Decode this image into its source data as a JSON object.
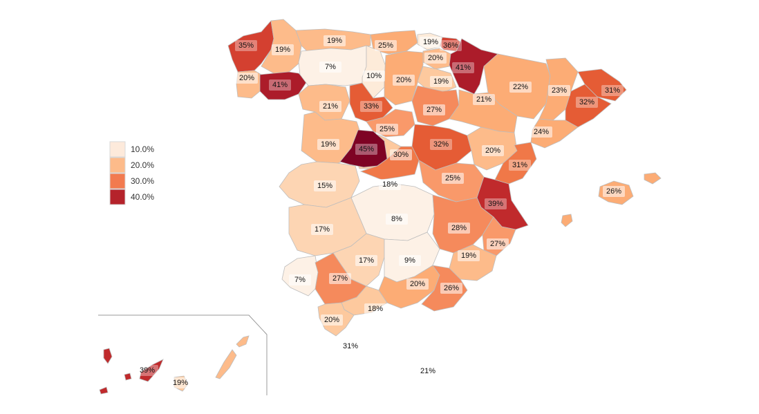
{
  "legend": {
    "items": [
      {
        "label": "10.0%",
        "color": "#fdeadb"
      },
      {
        "label": "20.0%",
        "color": "#fdbb8a"
      },
      {
        "label": "30.0%",
        "color": "#f27a4f"
      },
      {
        "label": "40.0%",
        "color": "#b5232b"
      }
    ]
  },
  "colors": {
    "c7": "#fdf1e6",
    "c10": "#fdebd9",
    "c15": "#fdd5b3",
    "c18": "#fdc99e",
    "c20": "#fdbb8a",
    "c22": "#fcac75",
    "c25": "#f9996a",
    "c27": "#f58a5c",
    "c30": "#f07848",
    "c33": "#e55c35",
    "c36": "#d44030",
    "c39": "#c02a2c",
    "c41": "#ac1c2a",
    "c45": "#7e0324"
  },
  "regions": [
    {
      "name": "A Coruna",
      "value": "35%"
    },
    {
      "name": "Lugo",
      "value": "19%"
    },
    {
      "name": "Asturias",
      "value": "19%"
    },
    {
      "name": "Cantabria",
      "value": "25%"
    },
    {
      "name": "Vizcaya",
      "value": "19%"
    },
    {
      "name": "Guipuzcoa",
      "value": "36%"
    },
    {
      "name": "Alava",
      "value": "20%"
    },
    {
      "name": "Navarra",
      "value": "41%"
    },
    {
      "name": "Leon",
      "value": "7%"
    },
    {
      "name": "Palencia",
      "value": "10%"
    },
    {
      "name": "Burgos",
      "value": "20%"
    },
    {
      "name": "La Rioja",
      "value": "19%"
    },
    {
      "name": "Pontevedra",
      "value": "20%"
    },
    {
      "name": "Ourense",
      "value": "41%"
    },
    {
      "name": "Huesca",
      "value": "22%"
    },
    {
      "name": "Girona",
      "value": "31%"
    },
    {
      "name": "Lleida",
      "value": "23%"
    },
    {
      "name": "Barcelona",
      "value": "32%"
    },
    {
      "name": "Zamora",
      "value": "21%"
    },
    {
      "name": "Valladolid",
      "value": "33%"
    },
    {
      "name": "Soria",
      "value": "27%"
    },
    {
      "name": "Zaragoza",
      "value": "21%"
    },
    {
      "name": "Segovia",
      "value": "25%"
    },
    {
      "name": "Tarragona",
      "value": "24%"
    },
    {
      "name": "Salamanca",
      "value": "19%"
    },
    {
      "name": "Madrid",
      "value": "45%"
    },
    {
      "name": "Guadalajara",
      "value": "32%"
    },
    {
      "name": "Teruel",
      "value": "20%"
    },
    {
      "name": "Castellon",
      "value": "31%"
    },
    {
      "name": "Toledo",
      "value": "30%"
    },
    {
      "name": "Caceres",
      "value": "15%"
    },
    {
      "name": "Avila",
      "value": "18%"
    },
    {
      "name": "Cuenca",
      "value": "25%"
    },
    {
      "name": "Valencia",
      "value": "39%"
    },
    {
      "name": "Mallorca",
      "value": "26%"
    },
    {
      "name": "Ciudad Real",
      "value": "8%"
    },
    {
      "name": "Badajoz",
      "value": "17%"
    },
    {
      "name": "Albacete",
      "value": "28%"
    },
    {
      "name": "Alicante",
      "value": "27%"
    },
    {
      "name": "Cordoba",
      "value": "17%"
    },
    {
      "name": "Jaen",
      "value": "9%"
    },
    {
      "name": "Murcia",
      "value": "19%"
    },
    {
      "name": "Huelva",
      "value": "7%"
    },
    {
      "name": "Sevilla",
      "value": "27%"
    },
    {
      "name": "Granada",
      "value": "20%"
    },
    {
      "name": "Almeria",
      "value": "26%"
    },
    {
      "name": "Malaga",
      "value": "18%"
    },
    {
      "name": "Cadiz",
      "value": "20%"
    },
    {
      "name": "Ceuta",
      "value": "31%"
    },
    {
      "name": "Melilla",
      "value": "21%"
    },
    {
      "name": "Santa Cruz de Tenerife",
      "value": "39%"
    },
    {
      "name": "Las Palmas",
      "value": "19%"
    }
  ]
}
